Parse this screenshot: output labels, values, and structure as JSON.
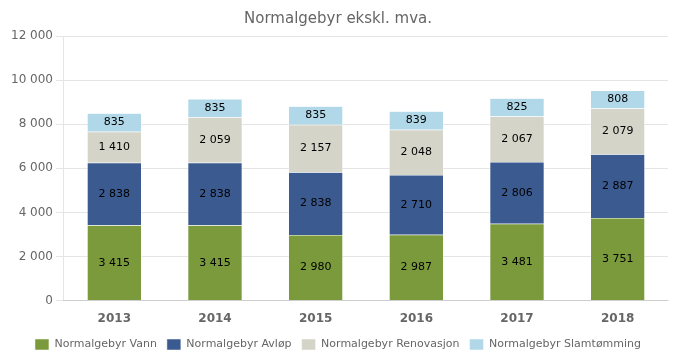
{
  "chart_data": {
    "type": "bar",
    "title": "Normalgebyr ekskl. mva.",
    "categories": [
      "2013",
      "2014",
      "2015",
      "2016",
      "2017",
      "2018"
    ],
    "series": [
      {
        "name": "Normalgebyr Vann",
        "color": "#7a9a3c",
        "values": [
          3415,
          3415,
          2980,
          2987,
          3481,
          3751
        ],
        "value_labels": [
          "3 415",
          "3 415",
          "2 980",
          "2 987",
          "3 481",
          "3 751"
        ]
      },
      {
        "name": "Normalgebyr Avløp",
        "color": "#3b5a8f",
        "values": [
          2838,
          2838,
          2838,
          2710,
          2806,
          2887
        ],
        "value_labels": [
          "2 838",
          "2 838",
          "2 838",
          "2 710",
          "2 806",
          "2 887"
        ]
      },
      {
        "name": "Normalgebyr Renovasjon",
        "color": "#d4d4c8",
        "values": [
          1410,
          2059,
          2157,
          2048,
          2067,
          2079
        ],
        "value_labels": [
          "1 410",
          "2 059",
          "2 157",
          "2 048",
          "2 067",
          "2 079"
        ]
      },
      {
        "name": "Normalgebyr Slamtømming",
        "color": "#b0d8e8",
        "values": [
          835,
          835,
          835,
          839,
          825,
          808
        ],
        "value_labels": [
          "835",
          "835",
          "835",
          "839",
          "825",
          "808"
        ]
      }
    ],
    "ylim": [
      0,
      12000
    ],
    "yticks": [
      0,
      {
        "value": 2000,
        "label": "2 000"
      },
      {
        "value": 4000,
        "label": "4 000"
      },
      {
        "value": 6000,
        "label": "6 000"
      },
      {
        "value": 8000,
        "label": "8 000"
      },
      {
        "value": 10000,
        "label": "10 000"
      },
      {
        "value": 12000,
        "label": "12 000"
      }
    ],
    "grid": true,
    "legend": "bottom",
    "stacked": true,
    "data_labels": true
  }
}
